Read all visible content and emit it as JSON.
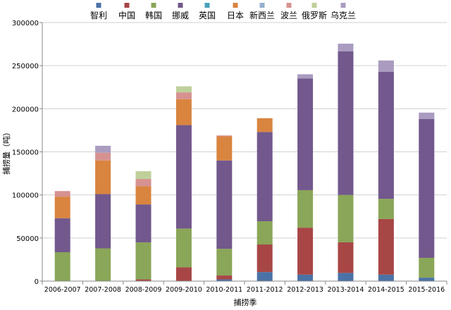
{
  "chart_data": {
    "type": "bar",
    "stacked": true,
    "title": "",
    "xlabel": "捕捞季",
    "ylabel": "捕捞量（吨）",
    "ylim": [
      0,
      300000
    ],
    "yticks": [
      0,
      50000,
      100000,
      150000,
      200000,
      250000,
      300000
    ],
    "ytick_labels": [
      "0",
      "50000",
      "100000",
      "150000",
      "200000",
      "250000",
      "300000"
    ],
    "grid": true,
    "legend_position": "top",
    "categories": [
      "2006-2007",
      "2007-2008",
      "2008-2009",
      "2009-2010",
      "2010-2011",
      "2011-2012",
      "2012-2013",
      "2013-2014",
      "2014-2015",
      "2015-2016"
    ],
    "series": [
      {
        "name": "智利",
        "color": "#4a72a6",
        "values": [
          0,
          0,
          0,
          0,
          2000,
          10500,
          7500,
          9500,
          7500,
          4000
        ]
      },
      {
        "name": "中国",
        "color": "#a84646",
        "values": [
          0,
          0,
          2000,
          16000,
          4500,
          32000,
          54500,
          35500,
          64500,
          0
        ]
      },
      {
        "name": "韩国",
        "color": "#8aa658",
        "values": [
          33500,
          38000,
          43000,
          45000,
          31000,
          27000,
          43500,
          55000,
          23500,
          23000
        ]
      },
      {
        "name": "挪威",
        "color": "#72588c",
        "values": [
          39500,
          63000,
          44000,
          120000,
          102500,
          103500,
          129500,
          166500,
          147500,
          161000
        ]
      },
      {
        "name": "英国",
        "color": "#46a2ba",
        "values": [
          0,
          0,
          0,
          0,
          0,
          0,
          0,
          0,
          0,
          0
        ]
      },
      {
        "name": "日本",
        "color": "#d9843f",
        "values": [
          25000,
          39000,
          21000,
          30000,
          28000,
          16000,
          0,
          0,
          0,
          0
        ]
      },
      {
        "name": "新西兰",
        "color": "#95adcf",
        "values": [
          0,
          0,
          0,
          0,
          0,
          0,
          0,
          0,
          0,
          0
        ]
      },
      {
        "name": "波兰",
        "color": "#d69290",
        "values": [
          6500,
          9000,
          8500,
          8000,
          1000,
          0,
          0,
          0,
          0,
          0
        ]
      },
      {
        "name": "俄罗斯",
        "color": "#bfd09a",
        "values": [
          0,
          0,
          9000,
          7000,
          0,
          0,
          0,
          0,
          0,
          0
        ]
      },
      {
        "name": "乌克兰",
        "color": "#aa9bc0",
        "values": [
          0,
          8000,
          0,
          0,
          0,
          0,
          5000,
          9000,
          13000,
          7500
        ]
      }
    ]
  }
}
